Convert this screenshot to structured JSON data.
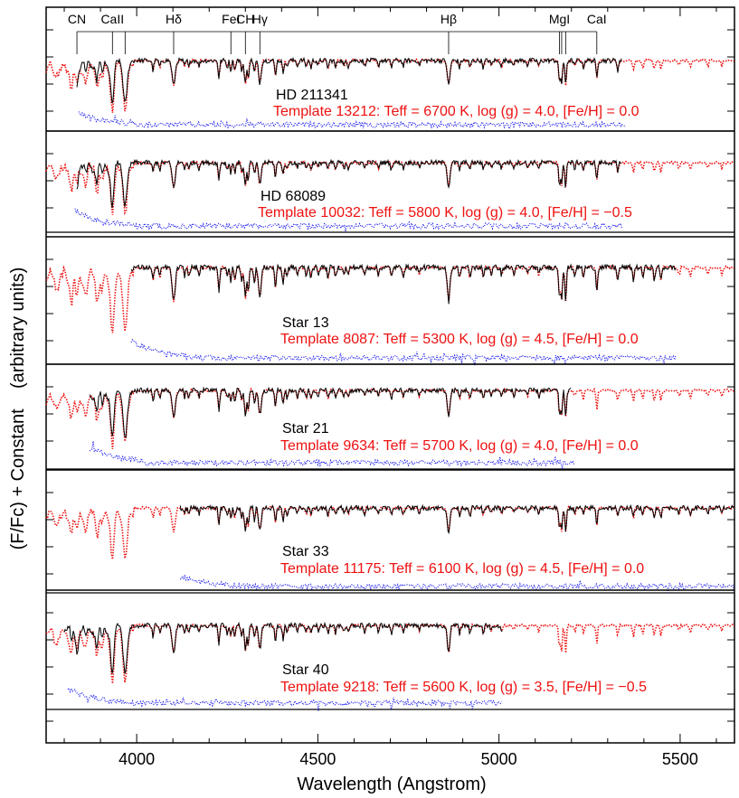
{
  "chart_data": {
    "type": "line",
    "xlabel": "Wavelength (Angstrom)",
    "ylabel": "(F/Fc) + Constant    (arbitrary units)",
    "xlim": [
      3750,
      5650
    ],
    "xticks": [
      {
        "value": 4000,
        "label": "4000"
      },
      {
        "value": 4500,
        "label": "4500"
      },
      {
        "value": 5000,
        "label": "5000"
      },
      {
        "value": 5500,
        "label": "5500"
      }
    ],
    "line_ids": [
      {
        "label": "CN",
        "x": 3835
      },
      {
        "label": "CaII",
        "x": 3933
      },
      {
        "label": "",
        "x": 3968
      },
      {
        "label": "Hδ",
        "x": 4102
      },
      {
        "label": "FeI",
        "x": 4260
      },
      {
        "label": "CH",
        "x": 4300
      },
      {
        "label": "Hγ",
        "x": 4340
      },
      {
        "label": "Hβ",
        "x": 4861
      },
      {
        "label": "MgI",
        "x": 5167
      },
      {
        "label": "",
        "x": 5173
      },
      {
        "label": "",
        "x": 5184
      },
      {
        "label": "CaI",
        "x": 5270
      }
    ],
    "colors": {
      "observed": "#000000",
      "template": "#ee1111",
      "residual": "#1a1aee"
    },
    "panels": [
      {
        "star": "HD 211341",
        "template": "Template 13212: Teff = 6700 K, log (g) = 4.0, [Fe/H] = 0.0",
        "observed_range": [
          3835,
          5340
        ],
        "residual_range": [
          3840,
          5350
        ]
      },
      {
        "star": "HD 68089",
        "template": "Template 10032: Teff = 5800 K, log (g) = 4.0, [Fe/H] = −0.5",
        "observed_range": [
          3835,
          5340
        ],
        "residual_range": [
          3830,
          5340
        ]
      },
      {
        "star": "Star 13",
        "template": "Template 8087: Teff = 5300 K, log (g) = 4.5, [Fe/H] = 0.0",
        "observed_range": [
          3985,
          5490
        ],
        "residual_range": [
          3985,
          5490
        ]
      },
      {
        "star": "Star 21",
        "template": "Template 9634: Teff = 5700 K, log (g) = 4.0, [Fe/H] = 0.0",
        "observed_range": [
          3870,
          5200
        ],
        "residual_range": [
          3870,
          5210
        ]
      },
      {
        "star": "Star 33",
        "template": "Template 11175: Teff = 6100 K, log (g) = 4.5, [Fe/H] = 0.0",
        "observed_range": [
          4120,
          5650
        ],
        "residual_range": [
          4120,
          5650
        ]
      },
      {
        "star": "Star 40",
        "template": "Template 9218: Teff = 5600 K, log (g) = 3.5, [Fe/H] = −0.5",
        "observed_range": [
          3800,
          5010
        ],
        "residual_range": [
          3810,
          5010
        ]
      }
    ]
  }
}
